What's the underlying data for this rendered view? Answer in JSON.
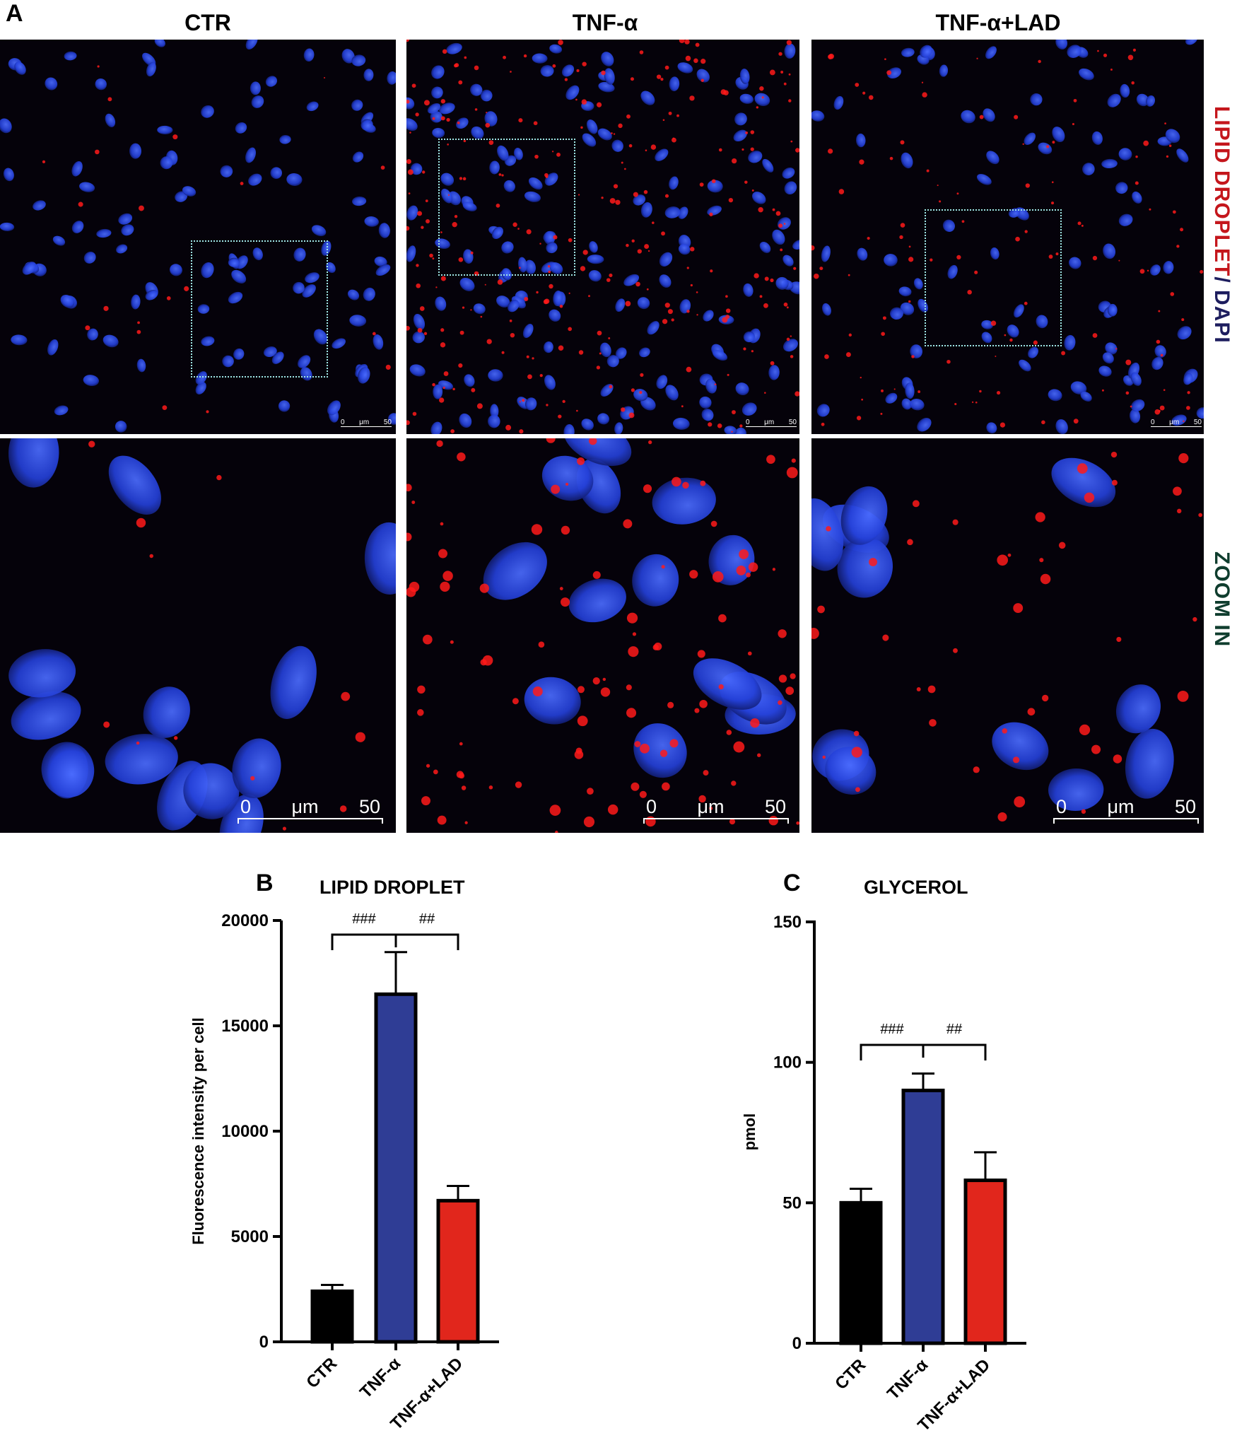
{
  "panel_a": {
    "letter": "A",
    "columns": [
      "CTR",
      "TNF-α",
      "TNF-α+LAD"
    ],
    "side_label_stain": {
      "part1": "LIPID DROPLET",
      "part2": "/ DAPI"
    },
    "side_label_zoom": "ZOOM IN",
    "scalebar_top": {
      "start": "0",
      "unit": "μm",
      "end": "50"
    },
    "scalebar_zoom": {
      "start": "0",
      "unit": "μm",
      "end": "50"
    }
  },
  "panel_b": {
    "letter": "B",
    "title": "LIPID DROPLET",
    "ylabel": "Fluorescence intensity per cell",
    "sig_left": "###",
    "sig_right": "##"
  },
  "panel_c": {
    "letter": "C",
    "title": "GLYCEROL",
    "ylabel": "pmol",
    "sig_left": "###",
    "sig_right": "##"
  },
  "colors": {
    "ctr": "#000000",
    "tnf": "#2f3d95",
    "lad": "#e1261c",
    "red_label": "#c4161c",
    "blue_label": "#1d1d5e",
    "green_label": "#0f3d2e"
  },
  "chart_data": [
    {
      "type": "bar",
      "title": "LIPID DROPLET",
      "xlabel": "",
      "ylabel": "Fluorescence intensity per cell",
      "categories": [
        "CTR",
        "TNF-α",
        "TNF-α+LAD"
      ],
      "values": [
        2400,
        16500,
        6700
      ],
      "errors": [
        300,
        2000,
        700
      ],
      "ylim": [
        0,
        20000
      ],
      "yticks": [
        0,
        5000,
        10000,
        15000,
        20000
      ],
      "grid": false,
      "legend": "none"
    },
    {
      "type": "bar",
      "title": "GLYCEROL",
      "xlabel": "",
      "ylabel": "pmol",
      "categories": [
        "CTR",
        "TNF-α",
        "TNF-α+LAD"
      ],
      "values": [
        50,
        90,
        58
      ],
      "errors": [
        5,
        6,
        10
      ],
      "ylim": [
        0,
        150
      ],
      "yticks": [
        0,
        50,
        100,
        150
      ],
      "grid": false,
      "legend": "none"
    }
  ]
}
